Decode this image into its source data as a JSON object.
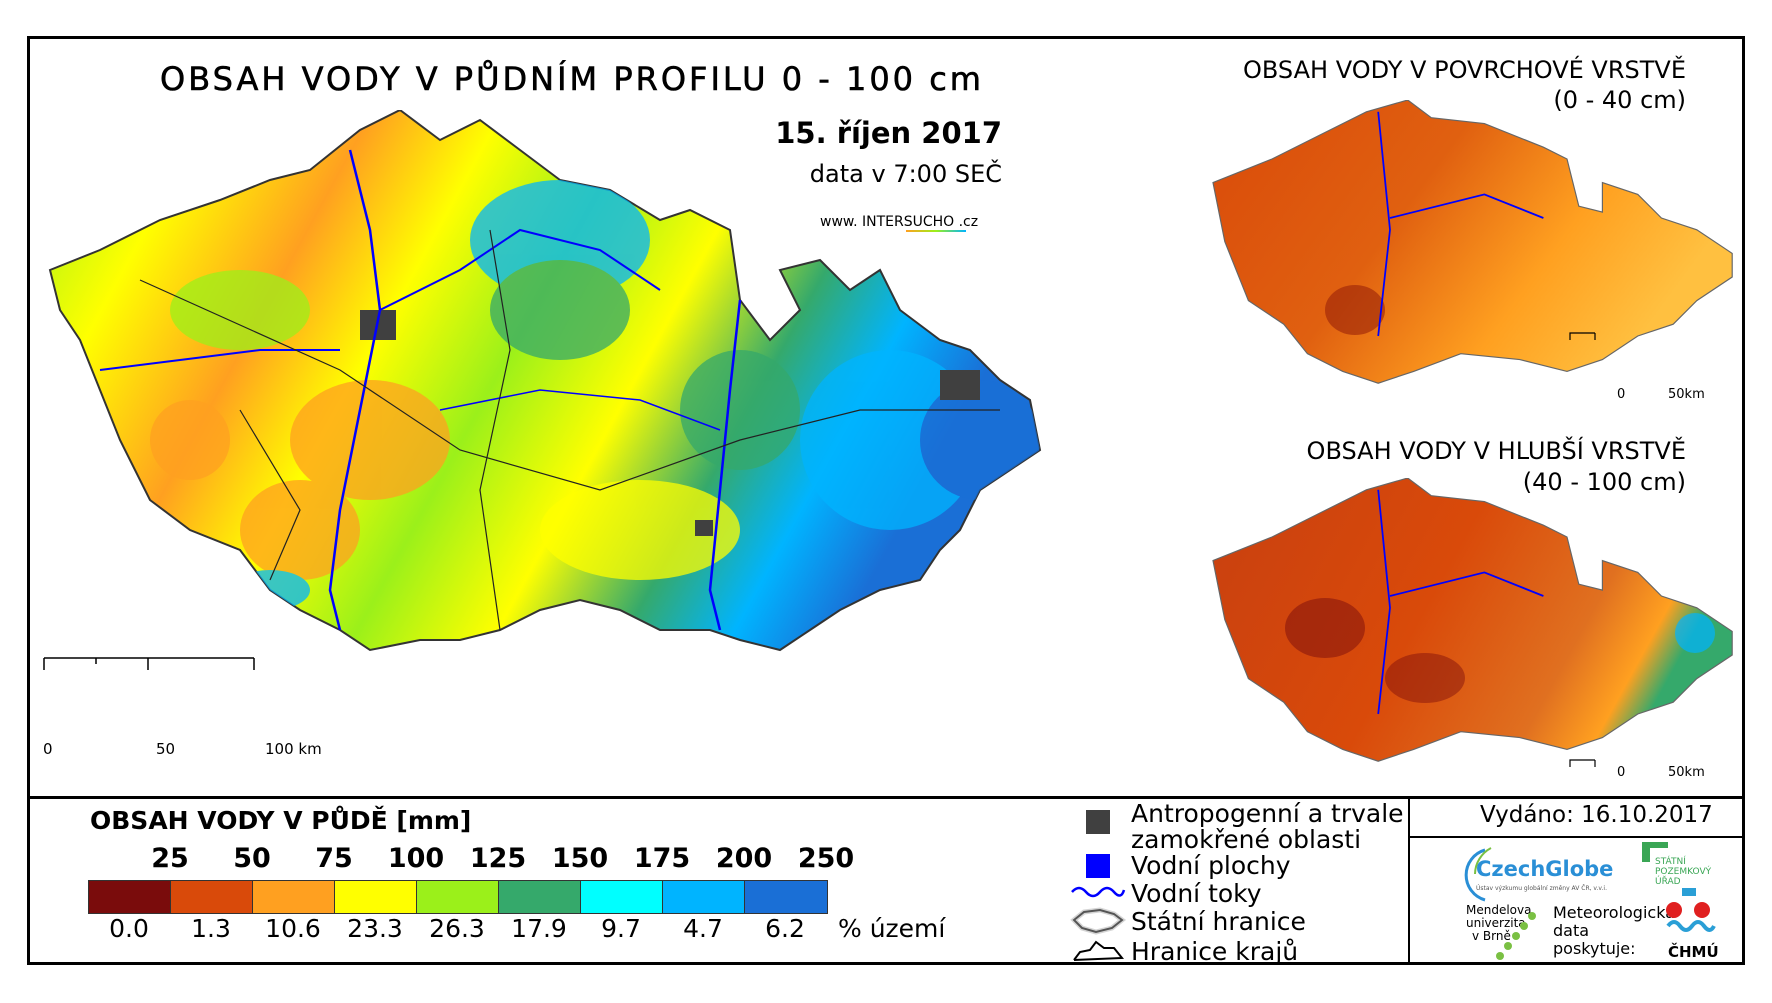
{
  "main_map": {
    "title": "OBSAH VODY V PŮDNÍM PROFILU 0 - 100 cm",
    "date": "15. říjen 2017",
    "data_time": "data v 7:00 SEČ",
    "website": "www. INTERSUCHO .cz",
    "scale": {
      "labels": [
        "0",
        "50",
        "100 km"
      ]
    }
  },
  "inset_top": {
    "title_line1": "OBSAH VODY V POVRCHOVÉ VRSTVĚ",
    "title_line2": "(0 - 40 cm)",
    "scale": {
      "labels": [
        "0",
        "50km"
      ]
    }
  },
  "inset_bottom": {
    "title_line1": "OBSAH VODY V HLUBŠÍ VRSTVĚ",
    "title_line2": "(40 - 100 cm)",
    "scale": {
      "labels": [
        "0",
        "50km"
      ]
    }
  },
  "legend": {
    "title": "OBSAH VODY V PŮDĚ [mm]",
    "thresholds": [
      "25",
      "50",
      "75",
      "100",
      "125",
      "150",
      "175",
      "200",
      "250"
    ],
    "colors": [
      "#7a0c0c",
      "#d94a0a",
      "#ffa020",
      "#ffff00",
      "#9bf01a",
      "#35a96b",
      "#00ffff",
      "#00b4ff",
      "#1a6fd6"
    ],
    "percent_values": [
      "0.0",
      "1.3",
      "10.6",
      "23.3",
      "26.3",
      "17.9",
      "9.7",
      "4.7",
      "6.2"
    ],
    "percent_unit": "% území"
  },
  "map_legend": {
    "anthropogenic_line1": "Antropogenní a trvale",
    "anthropogenic_line2": "zamokřené oblasti",
    "water_bodies": "Vodní plochy",
    "rivers": "Vodní toky",
    "state_border": "Státní hranice",
    "regional_border": "Hranice krajů",
    "colors": {
      "anthropogenic": "#404040",
      "water": "#0000ff",
      "river": "#0000ff"
    }
  },
  "issued": "Vydáno: 16.10.2017",
  "logos": {
    "czechglobe": "CzechGlobe",
    "czechglobe_sub": "Ústav výzkumu globální změny AV ČR, v.v.i.",
    "spu_line1": "STÁTNÍ",
    "spu_line2": "POZEMKOVÝ",
    "spu_line3": "ÚŘAD",
    "mendel_line1": "Mendelova",
    "mendel_line2": "univerzita",
    "mendel_line3": "v Brně",
    "meteo_line1": "Meteorologická",
    "meteo_line2": "data",
    "meteo_line3": "poskytuje:",
    "chmu": "ČHMÚ"
  }
}
